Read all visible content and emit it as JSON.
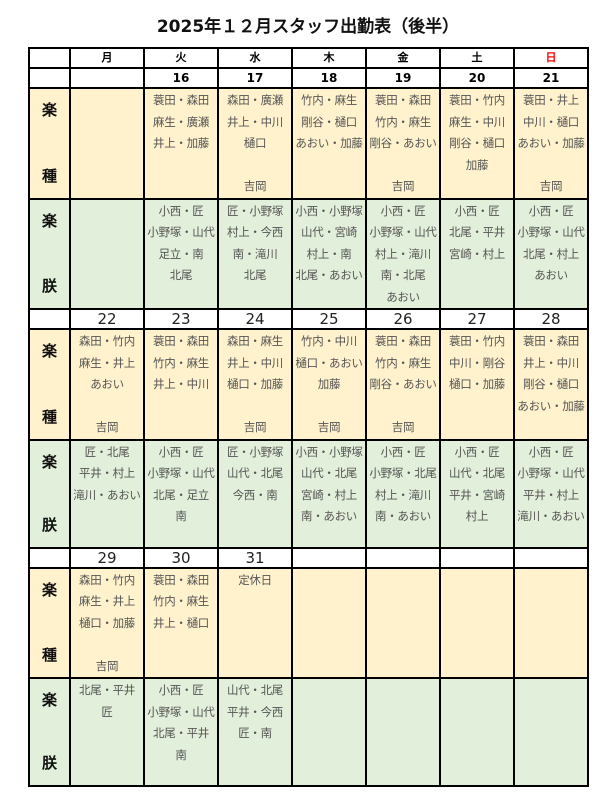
{
  "title": "2025年１２月スタッフ出勤表（後半）",
  "weekdays": [
    "月",
    "火",
    "水",
    "木",
    "金",
    "土",
    "日"
  ],
  "sunday_color": "#FF0000",
  "colors": {
    "row_a": "#FFF2CC",
    "row_b": "#E2EFDA"
  },
  "row_labels": {
    "a": {
      "top": "楽",
      "bottom": "種"
    },
    "b": {
      "top": "楽",
      "bottom": "朕"
    }
  },
  "weeks": [
    {
      "dates": [
        "",
        "16",
        "17",
        "18",
        "19",
        "20",
        "21"
      ],
      "row_a": [
        [],
        [
          "蓑田・森田",
          "麻生・廣瀬",
          "井上・加藤"
        ],
        [
          "森田・廣瀬",
          "井上・中川",
          "樋口",
          "",
          "吉岡"
        ],
        [
          "竹内・麻生",
          "剛谷・樋口",
          "あおい・加藤"
        ],
        [
          "蓑田・森田",
          "竹内・麻生",
          "剛谷・あおい",
          "",
          "吉岡"
        ],
        [
          "蓑田・竹内",
          "麻生・中川",
          "剛谷・樋口",
          "加藤"
        ],
        [
          "蓑田・井上",
          "中川・樋口",
          "あおい・加藤",
          "",
          "吉岡"
        ]
      ],
      "row_b": [
        [],
        [
          "小西・匠",
          "小野塚・山代",
          "足立・南",
          "北尾"
        ],
        [
          "匠・小野塚",
          "村上・今西",
          "南・滝川",
          "北尾"
        ],
        [
          "小西・小野塚",
          "山代・宮崎",
          "村上・南",
          "北尾・あおい"
        ],
        [
          "小西・匠",
          "小野塚・山代",
          "村上・滝川",
          "南・北尾",
          "あおい"
        ],
        [
          "小西・匠",
          "北尾・平井",
          "宮崎・村上"
        ],
        [
          "小西・匠",
          "小野塚・山代",
          "北尾・村上",
          "あおい"
        ]
      ]
    },
    {
      "dates": [
        "22",
        "23",
        "24",
        "25",
        "26",
        "27",
        "28"
      ],
      "row_a": [
        [
          "森田・竹内",
          "麻生・井上",
          "あおい",
          "",
          "吉岡"
        ],
        [
          "蓑田・森田",
          "竹内・麻生",
          "井上・中川"
        ],
        [
          "森田・麻生",
          "井上・中川",
          "樋口・加藤",
          "",
          "吉岡"
        ],
        [
          "竹内・中川",
          "樋口・あおい",
          "加藤",
          "",
          "吉岡"
        ],
        [
          "蓑田・森田",
          "竹内・麻生",
          "剛谷・あおい",
          "",
          "吉岡"
        ],
        [
          "蓑田・竹内",
          "中川・剛谷",
          "樋口・加藤"
        ],
        [
          "蓑田・森田",
          "井上・中川",
          "剛谷・樋口",
          "あおい・加藤"
        ]
      ],
      "row_b": [
        [
          "匠・北尾",
          "平井・村上",
          "滝川・あおい"
        ],
        [
          "小西・匠",
          "小野塚・山代",
          "北尾・足立",
          "南"
        ],
        [
          "匠・小野塚",
          "山代・北尾",
          "今西・南"
        ],
        [
          "小西・小野塚",
          "山代・北尾",
          "宮崎・村上",
          "南・あおい"
        ],
        [
          "小西・匠",
          "小野塚・北尾",
          "村上・滝川",
          "南・あおい"
        ],
        [
          "小西・匠",
          "山代・北尾",
          "平井・宮崎",
          "村上"
        ],
        [
          "小西・匠",
          "小野塚・山代",
          "平井・村上",
          "滝川・あおい"
        ]
      ]
    },
    {
      "dates": [
        "29",
        "30",
        "31",
        "",
        "",
        "",
        ""
      ],
      "row_a": [
        [
          "森田・竹内",
          "麻生・井上",
          "樋口・加藤",
          "",
          "吉岡"
        ],
        [
          "蓑田・森田",
          "竹内・麻生",
          "井上・樋口"
        ],
        [
          "定休日"
        ],
        [],
        [],
        [],
        []
      ],
      "row_b": [
        [
          "北尾・平井",
          "匠"
        ],
        [
          "小西・匠",
          "小野塚・山代",
          "北尾・平井",
          "南"
        ],
        [
          "山代・北尾",
          "平井・今西",
          "匠・南"
        ],
        [],
        [],
        [],
        []
      ]
    }
  ]
}
